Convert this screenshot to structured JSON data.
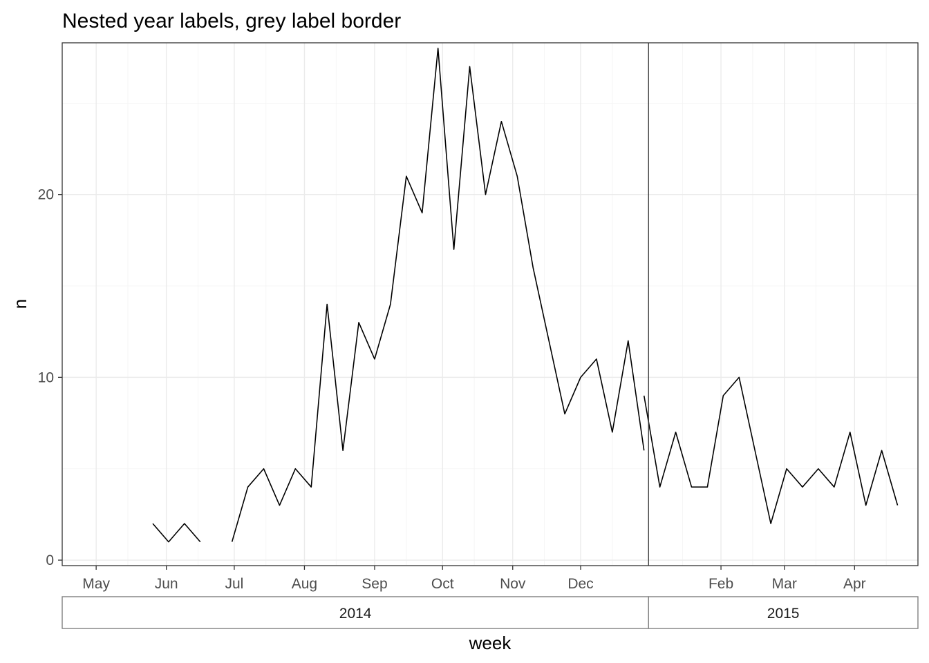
{
  "chart_data": {
    "type": "line",
    "title": "Nested year labels, grey label border",
    "xlabel": "week",
    "ylabel": "n",
    "ylim": [
      0,
      28
    ],
    "y_ticks": [
      0,
      10,
      20
    ],
    "x_domain": [
      "2014-04-16",
      "2015-04-29"
    ],
    "x_ticks": [
      {
        "date": "2014-05-01",
        "label": "May"
      },
      {
        "date": "2014-06-01",
        "label": "Jun"
      },
      {
        "date": "2014-07-01",
        "label": "Jul"
      },
      {
        "date": "2014-08-01",
        "label": "Aug"
      },
      {
        "date": "2014-09-01",
        "label": "Sep"
      },
      {
        "date": "2014-10-01",
        "label": "Oct"
      },
      {
        "date": "2014-11-01",
        "label": "Nov"
      },
      {
        "date": "2014-12-01",
        "label": "Dec"
      },
      {
        "date": "2015-02-01",
        "label": "Feb"
      },
      {
        "date": "2015-03-01",
        "label": "Mar"
      },
      {
        "date": "2015-04-01",
        "label": "Apr"
      }
    ],
    "year_strips": [
      {
        "label": "2014",
        "start": "2014-04-16",
        "end": "2014-12-31"
      },
      {
        "label": "2015",
        "start": "2014-12-31",
        "end": "2015-04-29"
      }
    ],
    "grid": true,
    "line_color": "#000000",
    "series": [
      {
        "points": [
          {
            "x": "2014-05-26",
            "y": 2
          },
          {
            "x": "2014-06-02",
            "y": 1
          },
          {
            "x": "2014-06-09",
            "y": 2
          },
          {
            "x": "2014-06-16",
            "y": 1
          },
          null,
          {
            "x": "2014-06-30",
            "y": 1
          },
          {
            "x": "2014-07-07",
            "y": 4
          },
          {
            "x": "2014-07-14",
            "y": 5
          },
          {
            "x": "2014-07-21",
            "y": 3
          },
          {
            "x": "2014-07-28",
            "y": 5
          },
          {
            "x": "2014-08-04",
            "y": 4
          },
          {
            "x": "2014-08-11",
            "y": 14
          },
          {
            "x": "2014-08-18",
            "y": 6
          },
          {
            "x": "2014-08-25",
            "y": 13
          },
          {
            "x": "2014-09-01",
            "y": 11
          },
          {
            "x": "2014-09-08",
            "y": 14
          },
          {
            "x": "2014-09-15",
            "y": 21
          },
          {
            "x": "2014-09-22",
            "y": 19
          },
          {
            "x": "2014-09-29",
            "y": 28
          },
          {
            "x": "2014-10-06",
            "y": 17
          },
          {
            "x": "2014-10-13",
            "y": 27
          },
          {
            "x": "2014-10-20",
            "y": 20
          },
          {
            "x": "2014-10-27",
            "y": 24
          },
          {
            "x": "2014-11-03",
            "y": 21
          },
          {
            "x": "2014-11-10",
            "y": 16
          },
          {
            "x": "2014-11-17",
            "y": 12
          },
          {
            "x": "2014-11-24",
            "y": 8
          },
          {
            "x": "2014-12-01",
            "y": 10
          },
          {
            "x": "2014-12-08",
            "y": 11
          },
          {
            "x": "2014-12-15",
            "y": 7
          },
          {
            "x": "2014-12-22",
            "y": 12
          },
          {
            "x": "2014-12-29",
            "y": 6
          },
          null,
          {
            "x": "2014-12-29",
            "y": 9
          },
          {
            "x": "2015-01-05",
            "y": 4
          },
          {
            "x": "2015-01-12",
            "y": 7
          },
          {
            "x": "2015-01-19",
            "y": 4
          },
          {
            "x": "2015-01-26",
            "y": 4
          },
          {
            "x": "2015-02-02",
            "y": 9
          },
          {
            "x": "2015-02-09",
            "y": 10
          },
          {
            "x": "2015-02-16",
            "y": 6
          },
          {
            "x": "2015-02-23",
            "y": 2
          },
          {
            "x": "2015-03-02",
            "y": 5
          },
          {
            "x": "2015-03-09",
            "y": 4
          },
          {
            "x": "2015-03-16",
            "y": 5
          },
          {
            "x": "2015-03-23",
            "y": 4
          },
          {
            "x": "2015-03-30",
            "y": 7
          },
          {
            "x": "2015-04-06",
            "y": 3
          },
          {
            "x": "2015-04-13",
            "y": 6
          },
          {
            "x": "2015-04-20",
            "y": 3
          }
        ]
      }
    ]
  }
}
